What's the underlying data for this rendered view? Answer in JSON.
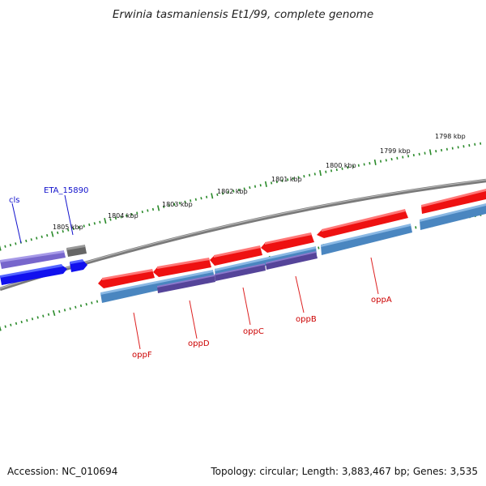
{
  "title": "Erwinia tasmaniensis Et1/99, complete genome",
  "footer": {
    "accession": "Accession: NC_010694",
    "stats": "Topology: circular; Length: 3,883,467 bp; Genes: 3,535"
  },
  "scale_labels": [
    "1798 kbp",
    "1799 kbp",
    "1800 kbp",
    "1801 kbp",
    "1802 kbp",
    "1803 kbp",
    "1804 kbp",
    "1805 kbp"
  ],
  "gene_labels": [
    "cls",
    "ETA_15890",
    "oppF",
    "oppD",
    "oppC",
    "oppB",
    "oppA"
  ],
  "colors": {
    "cds_red": "#ee1111",
    "cds_blue": "#1111ee",
    "cds_purple": "#7766cc",
    "cds_gray": "#666666",
    "feature_steel": "#4a86c0",
    "feature_darkpurple": "#554499",
    "backbone": "#808080",
    "ticks": "#2a8a2a",
    "label_red": "#cc0000",
    "label_blue": "#0000cc"
  }
}
